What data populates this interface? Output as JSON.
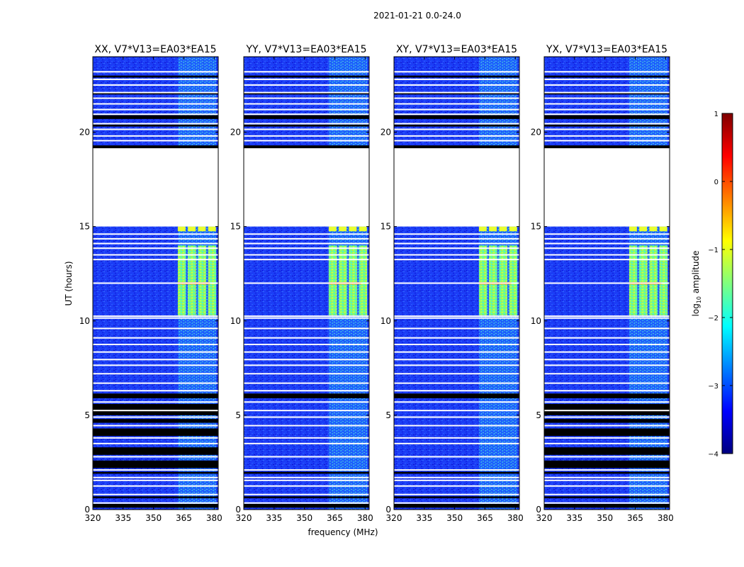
{
  "chart_data": {
    "type": "heatmap",
    "title": "2021-01-21 0.0-24.0",
    "xlabel": "frequency (MHz)",
    "ylabel": "UT (hours)",
    "xlim": [
      320,
      382
    ],
    "ylim": [
      0,
      24
    ],
    "x_ticks": [
      "320",
      "335",
      "350",
      "365",
      "380"
    ],
    "x_tick_values": [
      320,
      335,
      350,
      365,
      380
    ],
    "y_ticks": [
      "0",
      "5",
      "10",
      "15",
      "20"
    ],
    "y_tick_values": [
      0,
      5,
      10,
      15,
      20
    ],
    "panels": [
      {
        "title": "XX, V7*V13=EA03*EA15"
      },
      {
        "title": "YY, V7*V13=EA03*EA15"
      },
      {
        "title": "XY, V7*V13=EA03*EA15"
      },
      {
        "title": "YX, V7*V13=EA03*EA15"
      }
    ],
    "colorbar": {
      "label_prefix": "log",
      "label_sub": "10",
      "label_suffix": " amplitude",
      "range": [
        -4,
        1
      ],
      "ticks": [
        "1",
        "0",
        "−1",
        "−2",
        "−3",
        "−4"
      ],
      "tick_values": [
        1,
        0,
        -1,
        -2,
        -3,
        -4
      ],
      "colormap": "jet",
      "colormap_stops": [
        "#00007f",
        "#0000ff",
        "#007fff",
        "#00ffff",
        "#7fff7f",
        "#ffff00",
        "#ff7f00",
        "#ff0000",
        "#7f0000"
      ]
    },
    "no_data_hours": [
      [
        15.0,
        19.2
      ]
    ],
    "rfi_band_mhz": [
      362,
      381
    ],
    "peak_hours": [
      10.3,
      14.0
    ]
  }
}
